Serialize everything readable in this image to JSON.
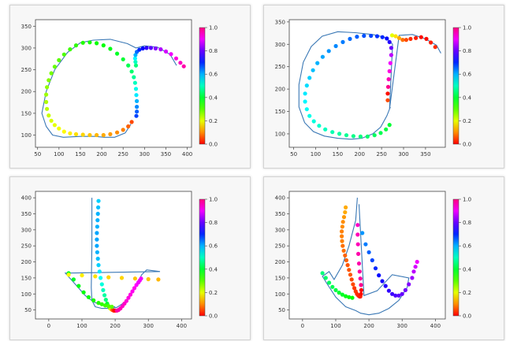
{
  "colorbar": {
    "ticks": [
      0.0,
      0.2,
      0.4,
      0.6,
      0.8,
      1.0
    ],
    "tick_labels": [
      "0.0",
      "0.2",
      "0.4",
      "0.6",
      "0.8",
      "1.0"
    ],
    "colormap": "gist_rainbow"
  },
  "chart_data": [
    {
      "type": "scatter",
      "title": "",
      "xlabel": "",
      "ylabel": "",
      "xlim": [
        45,
        410
      ],
      "ylim": [
        365,
        72
      ],
      "y_inverted": true,
      "xticks": [
        50,
        100,
        150,
        200,
        250,
        300,
        350,
        400
      ],
      "xtick_labels": [
        "50",
        "100",
        "150",
        "200",
        "250",
        "300",
        "350",
        "400"
      ],
      "yticks": [
        100,
        150,
        200,
        250,
        300,
        350
      ],
      "ytick_labels": [
        "100",
        "150",
        "200",
        "250",
        "300",
        "350"
      ],
      "reference_line": {
        "x": [
          268,
          255,
          230,
          205,
          185,
          150,
          110,
          85,
          70,
          60,
          70,
          90,
          120,
          150,
          180,
          220,
          260,
          280,
          300,
          330,
          360,
          375
        ],
        "y": [
          125,
          105,
          95,
          95,
          97,
          97,
          95,
          100,
          120,
          150,
          200,
          250,
          290,
          312,
          318,
          320,
          310,
          300,
          305,
          302,
          285,
          260
        ]
      },
      "points": {
        "x": [
          270,
          262,
          250,
          236,
          220,
          204,
          188,
          172,
          156,
          140,
          126,
          112,
          100,
          90,
          82,
          76,
          72,
          70,
          70,
          72,
          76,
          82,
          90,
          100,
          112,
          126,
          140,
          156,
          172,
          188,
          204,
          220,
          236,
          250,
          262,
          270,
          275,
          278,
          280,
          281,
          282,
          282,
          282,
          281,
          280,
          279,
          278,
          279,
          282,
          288,
          296,
          305,
          315,
          326,
          338,
          350,
          362,
          374,
          384,
          392
        ],
        "y": [
          130,
          120,
          112,
          106,
          102,
          100,
          100,
          100,
          101,
          102,
          104,
          108,
          115,
          123,
          133,
          145,
          160,
          176,
          193,
          210,
          226,
          242,
          257,
          272,
          285,
          297,
          306,
          312,
          313,
          311,
          306,
          298,
          287,
          274,
          260,
          246,
          233,
          220,
          206,
          192,
          178,
          165,
          154,
          144,
          260,
          268,
          276,
          284,
          291,
          296,
          299,
          300,
          300,
          299,
          297,
          292,
          286,
          276,
          266,
          258
        ],
        "t": [
          0.05,
          0.07,
          0.09,
          0.1,
          0.11,
          0.12,
          0.13,
          0.14,
          0.15,
          0.16,
          0.17,
          0.18,
          0.19,
          0.2,
          0.21,
          0.22,
          0.23,
          0.24,
          0.25,
          0.26,
          0.27,
          0.28,
          0.29,
          0.3,
          0.31,
          0.32,
          0.33,
          0.34,
          0.35,
          0.36,
          0.37,
          0.38,
          0.39,
          0.4,
          0.42,
          0.44,
          0.47,
          0.5,
          0.53,
          0.56,
          0.6,
          0.63,
          0.66,
          0.68,
          0.45,
          0.5,
          0.55,
          0.6,
          0.65,
          0.7,
          0.73,
          0.76,
          0.79,
          0.82,
          0.85,
          0.88,
          0.9,
          0.93,
          0.95,
          0.97
        ]
      }
    },
    {
      "type": "scatter",
      "title": "",
      "xlabel": "",
      "ylabel": "",
      "xlim": [
        40,
        395
      ],
      "ylim": [
        355,
        70
      ],
      "y_inverted": true,
      "xticks": [
        50,
        100,
        150,
        200,
        250,
        300,
        350
      ],
      "xtick_labels": [
        "50",
        "100",
        "150",
        "200",
        "250",
        "300",
        "350"
      ],
      "yticks": [
        100,
        150,
        200,
        250,
        300,
        350
      ],
      "ytick_labels": [
        "100",
        "150",
        "200",
        "250",
        "300",
        "350"
      ],
      "reference_line": {
        "x": [
          270,
          262,
          248,
          230,
          205,
          180,
          150,
          120,
          95,
          75,
          62,
          62,
          72,
          90,
          115,
          150,
          190,
          230,
          260,
          275,
          268,
          290,
          320,
          350,
          375,
          385
        ],
        "y": [
          160,
          140,
          115,
          100,
          90,
          88,
          90,
          95,
          105,
          125,
          160,
          210,
          260,
          295,
          318,
          328,
          326,
          322,
          315,
          300,
          155,
          320,
          322,
          312,
          298,
          280
        ]
      },
      "points": {
        "x": [
          268,
          260,
          248,
          234,
          218,
          202,
          186,
          170,
          154,
          138,
          122,
          108,
          96,
          86,
          80,
          76,
          76,
          80,
          86,
          94,
          104,
          116,
          130,
          146,
          162,
          178,
          194,
          210,
          226,
          240,
          252,
          262,
          268,
          272,
          272,
          270,
          268,
          266,
          265,
          264,
          264,
          274,
          282,
          290,
          298,
          306,
          316,
          328,
          340,
          352,
          362,
          372
        ],
        "y": [
          120,
          110,
          102,
          97,
          94,
          94,
          95,
          97,
          100,
          104,
          110,
          118,
          128,
          140,
          155,
          172,
          190,
          208,
          225,
          242,
          258,
          272,
          285,
          296,
          305,
          312,
          317,
          319,
          319,
          318,
          316,
          313,
          305,
          292,
          276,
          258,
          240,
          222,
          205,
          190,
          175,
          320,
          318,
          314,
          310,
          310,
          312,
          314,
          316,
          312,
          304,
          294
        ],
        "t": [
          0.4,
          0.41,
          0.42,
          0.43,
          0.44,
          0.45,
          0.46,
          0.47,
          0.48,
          0.49,
          0.5,
          0.51,
          0.52,
          0.53,
          0.54,
          0.55,
          0.56,
          0.57,
          0.58,
          0.59,
          0.6,
          0.61,
          0.62,
          0.63,
          0.64,
          0.65,
          0.66,
          0.67,
          0.68,
          0.69,
          0.7,
          0.72,
          0.75,
          0.8,
          0.86,
          0.9,
          0.93,
          0.96,
          0.99,
          0.01,
          0.05,
          0.2,
          0.16,
          0.12,
          0.08,
          0.05,
          0.03,
          0.02,
          0.01,
          0.01,
          0.02,
          0.03
        ]
      }
    },
    {
      "type": "scatter",
      "title": "",
      "xlabel": "",
      "ylabel": "",
      "xlim": [
        -40,
        430
      ],
      "ylim": [
        420,
        22
      ],
      "y_inverted": true,
      "xticks": [
        0,
        100,
        200,
        300,
        400
      ],
      "xtick_labels": [
        "0",
        "100",
        "200",
        "300",
        "400"
      ],
      "yticks": [
        50,
        100,
        150,
        200,
        250,
        300,
        350,
        400
      ],
      "ytick_labels": [
        "50",
        "100",
        "150",
        "200",
        "250",
        "300",
        "350",
        "400"
      ],
      "reference_line": {
        "x": [
          130,
          130,
          128,
          130,
          140,
          160,
          185,
          205,
          230,
          255,
          280,
          295,
          335,
          50,
          80,
          110,
          135,
          160,
          185,
          200
        ],
        "y": [
          400,
          250,
          120,
          80,
          60,
          55,
          55,
          58,
          75,
          110,
          160,
          175,
          170,
          165,
          130,
          95,
          75,
          65,
          60,
          60
        ]
      },
      "points": {
        "x": [
          150,
          149,
          148,
          147,
          146,
          145,
          145,
          145,
          146,
          148,
          150,
          153,
          156,
          160,
          164,
          168,
          172,
          176,
          180,
          184,
          188,
          192,
          196,
          200,
          205,
          210,
          216,
          222,
          228,
          234,
          240,
          246,
          252,
          258,
          264,
          270,
          274,
          278,
          60,
          75,
          90,
          105,
          120,
          135,
          150,
          160,
          170,
          180,
          190,
          60,
          100,
          140,
          180,
          220,
          260,
          300,
          330
        ],
        "y": [
          390,
          370,
          350,
          330,
          310,
          290,
          270,
          250,
          230,
          210,
          190,
          170,
          150,
          130,
          112,
          96,
          82,
          70,
          62,
          56,
          52,
          50,
          48,
          48,
          48,
          50,
          55,
          62,
          70,
          78,
          88,
          98,
          108,
          118,
          128,
          136,
          142,
          148,
          165,
          145,
          125,
          105,
          90,
          80,
          72,
          68,
          64,
          62,
          60,
          160,
          158,
          155,
          152,
          150,
          148,
          146,
          145
        ],
        "t": [
          0.58,
          0.59,
          0.6,
          0.6,
          0.6,
          0.61,
          0.61,
          0.61,
          0.6,
          0.59,
          0.58,
          0.56,
          0.54,
          0.52,
          0.5,
          0.48,
          0.45,
          0.4,
          0.33,
          0.25,
          0.15,
          0.06,
          0.02,
          0.0,
          0.98,
          0.97,
          0.96,
          0.95,
          0.95,
          0.94,
          0.93,
          0.93,
          0.92,
          0.92,
          0.91,
          0.9,
          0.9,
          0.9,
          0.4,
          0.39,
          0.38,
          0.37,
          0.36,
          0.35,
          0.34,
          0.33,
          0.32,
          0.31,
          0.3,
          0.18,
          0.17,
          0.16,
          0.15,
          0.15,
          0.14,
          0.14,
          0.13
        ]
      }
    },
    {
      "type": "scatter",
      "title": "",
      "xlabel": "",
      "ylabel": "",
      "xlim": [
        -40,
        430
      ],
      "ylim": [
        420,
        22
      ],
      "y_inverted": true,
      "xticks": [
        0,
        100,
        200,
        300,
        400
      ],
      "xtick_labels": [
        "0",
        "100",
        "200",
        "300",
        "400"
      ],
      "yticks": [
        50,
        100,
        150,
        200,
        250,
        300,
        350,
        400
      ],
      "ytick_labels": [
        "50",
        "100",
        "150",
        "200",
        "250",
        "300",
        "350",
        "400"
      ],
      "reference_line": {
        "x": [
          165,
          160,
          140,
          120,
          95,
          80,
          60,
          75,
          100,
          130,
          160,
          175,
          200,
          230,
          260,
          290,
          315,
          320,
          270,
          225,
          185,
          170
        ],
        "y": [
          400,
          330,
          250,
          190,
          145,
          170,
          155,
          130,
          90,
          60,
          48,
          40,
          35,
          40,
          55,
          80,
          120,
          150,
          160,
          110,
          95,
          380
        ]
      },
      "points": {
        "x": [
          130,
          128,
          125,
          122,
          120,
          118,
          118,
          119,
          121,
          124,
          128,
          132,
          136,
          140,
          144,
          148,
          152,
          156,
          160,
          164,
          168,
          172,
          174,
          176,
          177,
          176,
          174,
          172,
          170,
          168,
          167,
          166,
          166,
          60,
          70,
          80,
          90,
          100,
          110,
          120,
          130,
          140,
          150,
          180,
          190,
          200,
          210,
          220,
          230,
          240,
          250,
          260,
          270,
          280,
          290,
          300,
          310,
          320,
          330,
          335,
          340,
          345
        ],
        "y": [
          370,
          355,
          340,
          325,
          310,
          295,
          280,
          265,
          250,
          235,
          220,
          205,
          190,
          175,
          160,
          145,
          130,
          118,
          108,
          100,
          95,
          92,
          92,
          100,
          112,
          128,
          148,
          170,
          195,
          225,
          255,
          285,
          315,
          165,
          150,
          135,
          122,
          112,
          104,
          98,
          93,
          90,
          88,
          290,
          255,
          230,
          205,
          180,
          158,
          140,
          125,
          110,
          100,
          95,
          95,
          100,
          112,
          130,
          150,
          170,
          185,
          200
        ],
        "t": [
          0.12,
          0.12,
          0.11,
          0.1,
          0.1,
          0.09,
          0.09,
          0.09,
          0.08,
          0.08,
          0.07,
          0.07,
          0.06,
          0.06,
          0.06,
          0.05,
          0.05,
          0.04,
          0.04,
          0.03,
          0.03,
          0.02,
          0.02,
          0.01,
          0.0,
          0.99,
          0.98,
          0.98,
          0.97,
          0.97,
          0.96,
          0.96,
          0.95,
          0.45,
          0.44,
          0.43,
          0.42,
          0.41,
          0.4,
          0.39,
          0.38,
          0.37,
          0.36,
          0.62,
          0.64,
          0.66,
          0.68,
          0.7,
          0.72,
          0.74,
          0.75,
          0.76,
          0.77,
          0.78,
          0.79,
          0.8,
          0.81,
          0.82,
          0.84,
          0.86,
          0.88,
          0.9
        ]
      }
    }
  ]
}
